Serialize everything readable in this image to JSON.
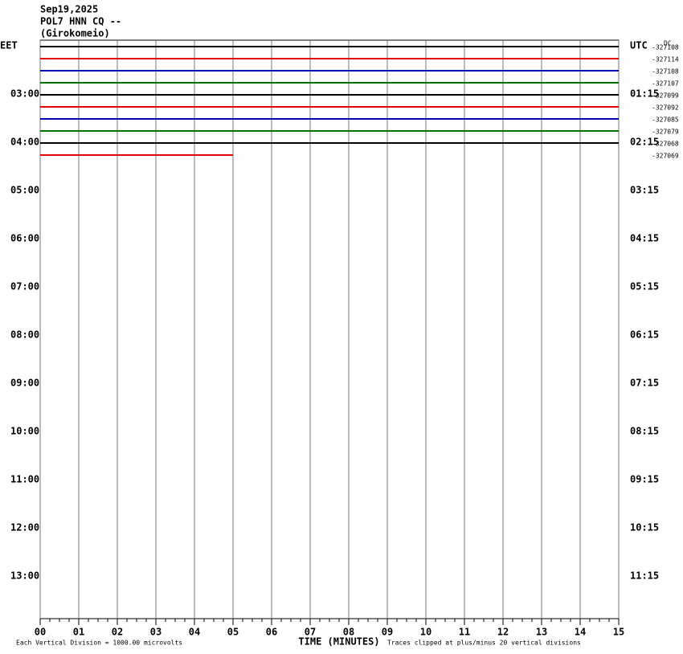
{
  "chart_data": {
    "type": "helicorder",
    "title_lines": [
      "Sep19,2025",
      "POL7 HNN CQ --",
      "(Girokomeio)"
    ],
    "left_labels": [
      "EET",
      "03:00",
      "04:00",
      "05:00",
      "06:00",
      "07:00",
      "08:00",
      "09:00",
      "10:00",
      "11:00",
      "12:00",
      "13:00"
    ],
    "right_labels": [
      "UTC",
      "01:15",
      "02:15",
      "03:15",
      "04:15",
      "05:15",
      "06:15",
      "07:15",
      "08:15",
      "09:15",
      "10:15",
      "11:15"
    ],
    "corner_label": "DC",
    "xlim": [
      0,
      15
    ],
    "xticks": [
      {
        "value": 0,
        "label": "00"
      },
      {
        "value": 1,
        "label": "01"
      },
      {
        "value": 2,
        "label": "02"
      },
      {
        "value": 3,
        "label": "03"
      },
      {
        "value": 4,
        "label": "04"
      },
      {
        "value": 5,
        "label": "05"
      },
      {
        "value": 6,
        "label": "06"
      },
      {
        "value": 7,
        "label": "07"
      },
      {
        "value": 8,
        "label": "08"
      },
      {
        "value": 9,
        "label": "09"
      },
      {
        "value": 10,
        "label": "10"
      },
      {
        "value": 11,
        "label": "11"
      },
      {
        "value": 12,
        "label": "12"
      },
      {
        "value": 13,
        "label": "13"
      },
      {
        "value": 14,
        "label": "14"
      },
      {
        "value": 15,
        "label": "15"
      }
    ],
    "xlabel": "TIME (MINUTES)",
    "note_left": "Each Vertical Division = 1000.00 microvolts",
    "note_right": "Traces clipped at plus/minus 20 vertical divisions",
    "traces": [
      {
        "color": "#000000",
        "offset": -327108,
        "end": 15
      },
      {
        "color": "#e00000",
        "offset": -327114,
        "end": 15
      },
      {
        "color": "#0000b0",
        "offset": -327108,
        "end": 15
      },
      {
        "color": "#007000",
        "offset": -327107,
        "end": 15
      },
      {
        "color": "#000000",
        "offset": -327099,
        "end": 15
      },
      {
        "color": "#e00000",
        "offset": -327092,
        "end": 15
      },
      {
        "color": "#0000b0",
        "offset": -327085,
        "end": 15
      },
      {
        "color": "#007000",
        "offset": -327079,
        "end": 15
      },
      {
        "color": "#000000",
        "offset": -327068,
        "end": 15
      },
      {
        "color": "#e00000",
        "offset": -327069,
        "end": 5
      }
    ]
  }
}
